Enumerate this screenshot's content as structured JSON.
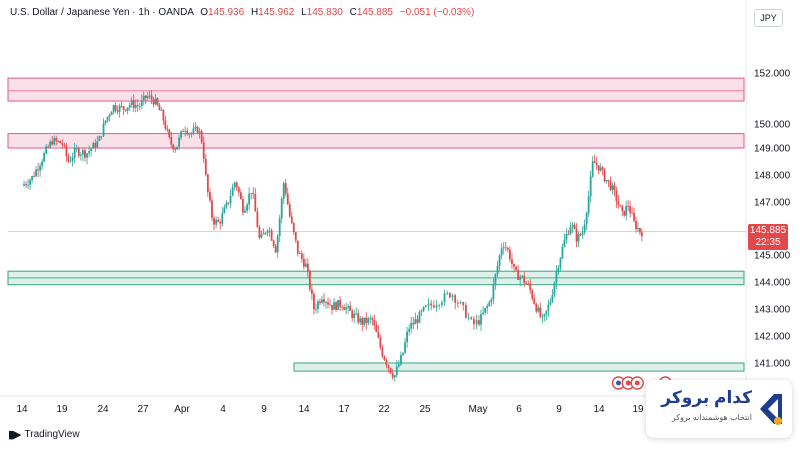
{
  "header": {
    "symbol": "U.S. Dollar / Japanese Yen · 1h · OANDA",
    "open_label": "O",
    "open": "145.936",
    "high_label": "H",
    "high": "145.962",
    "low_label": "L",
    "low": "145.830",
    "close_label": "C",
    "close": "145.885",
    "change": "−0.051 (−0.03%)"
  },
  "currency": "JPY",
  "last_price": {
    "price": "145.885",
    "countdown": "22:35"
  },
  "branding": {
    "tradingview": "TradingView",
    "broker_title": "کدام بروکر",
    "broker_subtitle": "انتخاب هوشمندانه بروکر"
  },
  "colors": {
    "candle_up": "#26a69a",
    "candle_down": "#e0484a",
    "resistance_zone": "#f8d7e2",
    "resistance_border": "#e8588a",
    "support_zone": "#d9f0e8",
    "support_border": "#3aa383",
    "price_tag": "#e0484a"
  },
  "chart_data": {
    "type": "candlestick",
    "ylim": [
      140.0,
      152.8
    ],
    "y_ticks": [
      {
        "value": 152.0,
        "label": "152.000"
      },
      {
        "value": 150.0,
        "label": "150.000"
      },
      {
        "value": 149.0,
        "label": "149.000"
      },
      {
        "value": 148.0,
        "label": "148.000"
      },
      {
        "value": 147.0,
        "label": "147.000"
      },
      {
        "value": 145.0,
        "label": "145.000"
      },
      {
        "value": 144.0,
        "label": "144.000"
      },
      {
        "value": 143.0,
        "label": "143.000"
      },
      {
        "value": 142.0,
        "label": "142.000"
      },
      {
        "value": 141.0,
        "label": "141.000"
      }
    ],
    "x_ticks": [
      {
        "pos": 0,
        "label": "14"
      },
      {
        "pos": 1,
        "label": "19"
      },
      {
        "pos": 2,
        "label": "24"
      },
      {
        "pos": 3,
        "label": "27"
      },
      {
        "pos": 4,
        "label": "Apr"
      },
      {
        "pos": 5,
        "label": "4"
      },
      {
        "pos": 6,
        "label": "9"
      },
      {
        "pos": 7,
        "label": "14"
      },
      {
        "pos": 8,
        "label": "17"
      },
      {
        "pos": 9,
        "label": "22"
      },
      {
        "pos": 10,
        "label": "25"
      },
      {
        "pos": 11,
        "label": "May"
      },
      {
        "pos": 12,
        "label": "6"
      },
      {
        "pos": 13,
        "label": "9"
      },
      {
        "pos": 14,
        "label": "14"
      },
      {
        "pos": 15,
        "label": "19"
      }
    ],
    "zones": [
      {
        "type": "resistance",
        "top": 151.8,
        "bottom": 150.9,
        "mid": 151.3
      },
      {
        "type": "resistance",
        "top": 149.6,
        "bottom": 149.0
      },
      {
        "type": "support",
        "top": 144.4,
        "bottom": 143.9,
        "mid": 144.15
      },
      {
        "type": "support",
        "top": 141.0,
        "bottom": 140.7
      }
    ],
    "last_price_line": 145.885,
    "path_x_range": [
      0,
      15.1
    ],
    "price_path": [
      [
        0.0,
        147.6
      ],
      [
        0.25,
        147.9
      ],
      [
        0.5,
        148.6
      ],
      [
        0.75,
        149.3
      ],
      [
        1.0,
        149.2
      ],
      [
        1.15,
        148.5
      ],
      [
        1.35,
        148.9
      ],
      [
        1.6,
        148.8
      ],
      [
        1.9,
        149.3
      ],
      [
        2.05,
        150.1
      ],
      [
        2.25,
        150.7
      ],
      [
        2.5,
        150.6
      ],
      [
        2.7,
        150.8
      ],
      [
        2.9,
        150.7
      ],
      [
        3.1,
        151.1
      ],
      [
        3.3,
        150.9
      ],
      [
        3.5,
        150.3
      ],
      [
        3.7,
        149.2
      ],
      [
        3.85,
        149.0
      ],
      [
        4.05,
        149.9
      ],
      [
        4.2,
        149.6
      ],
      [
        4.4,
        149.8
      ],
      [
        4.5,
        149.2
      ],
      [
        4.6,
        147.6
      ],
      [
        4.75,
        146.3
      ],
      [
        4.9,
        146.2
      ],
      [
        5.1,
        146.9
      ],
      [
        5.3,
        147.8
      ],
      [
        5.5,
        146.7
      ],
      [
        5.7,
        147.5
      ],
      [
        5.9,
        145.5
      ],
      [
        6.1,
        146.1
      ],
      [
        6.3,
        145.2
      ],
      [
        6.5,
        147.8
      ],
      [
        6.65,
        146.4
      ],
      [
        6.85,
        145.1
      ],
      [
        7.05,
        144.6
      ],
      [
        7.25,
        143.0
      ],
      [
        7.45,
        143.5
      ],
      [
        7.7,
        143.1
      ],
      [
        7.95,
        143.2
      ],
      [
        8.2,
        142.8
      ],
      [
        8.45,
        142.5
      ],
      [
        8.7,
        142.6
      ],
      [
        8.95,
        141.4
      ],
      [
        9.1,
        140.9
      ],
      [
        9.25,
        140.5
      ],
      [
        9.45,
        141.3
      ],
      [
        9.6,
        142.3
      ],
      [
        9.8,
        142.6
      ],
      [
        10.0,
        143.0
      ],
      [
        10.25,
        143.3
      ],
      [
        10.5,
        143.6
      ],
      [
        10.75,
        142.9
      ],
      [
        10.9,
        142.4
      ],
      [
        11.05,
        142.6
      ],
      [
        11.3,
        143.3
      ],
      [
        11.45,
        144.4
      ],
      [
        11.6,
        145.5
      ],
      [
        11.75,
        145.1
      ],
      [
        11.9,
        144.3
      ],
      [
        12.05,
        144.2
      ],
      [
        12.25,
        143.8
      ],
      [
        12.45,
        143.0
      ],
      [
        12.6,
        142.5
      ],
      [
        12.8,
        143.4
      ],
      [
        12.95,
        144.5
      ],
      [
        13.15,
        145.6
      ],
      [
        13.3,
        146.2
      ],
      [
        13.45,
        145.6
      ],
      [
        13.6,
        145.9
      ],
      [
        13.75,
        147.3
      ],
      [
        13.85,
        148.5
      ],
      [
        14.0,
        148.3
      ],
      [
        14.15,
        147.9
      ],
      [
        14.3,
        147.6
      ],
      [
        14.45,
        147.1
      ],
      [
        14.6,
        146.5
      ],
      [
        14.75,
        146.9
      ],
      [
        14.9,
        146.2
      ],
      [
        15.05,
        145.9
      ],
      [
        15.1,
        145.885
      ]
    ],
    "events": [
      {
        "pos": 14.5,
        "label": ""
      },
      {
        "pos": 14.75,
        "label": ""
      },
      {
        "pos": 14.98,
        "label": ""
      },
      {
        "pos": 15.7,
        "label": ""
      }
    ]
  }
}
